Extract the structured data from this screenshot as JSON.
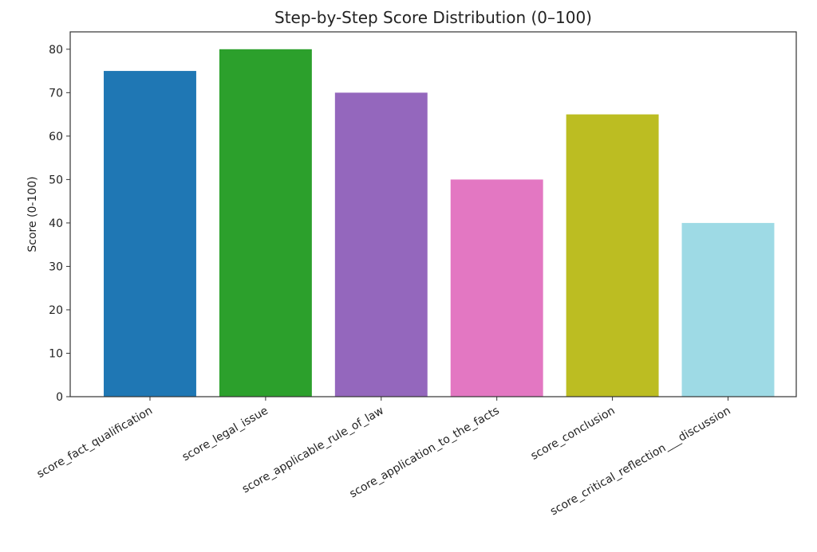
{
  "chart_data": {
    "type": "bar",
    "title": "Step-by-Step Score Distribution (0–100)",
    "xlabel": "",
    "ylabel": "Score (0-100)",
    "ylim": [
      0,
      84
    ],
    "yticks": [
      0,
      10,
      20,
      30,
      40,
      50,
      60,
      70,
      80
    ],
    "grid": false,
    "categories": [
      "score_fact_qualification",
      "score_legal_issue",
      "score_applicable_rule_of_law",
      "score_application_to_the_facts",
      "score_conclusion",
      "score_critical_reflection___discussion"
    ],
    "values": [
      75,
      80,
      70,
      50,
      65,
      40
    ],
    "colors": [
      "#1f77b4",
      "#2ca02c",
      "#9467bd",
      "#e377c2",
      "#bcbd22",
      "#9edae5"
    ]
  }
}
